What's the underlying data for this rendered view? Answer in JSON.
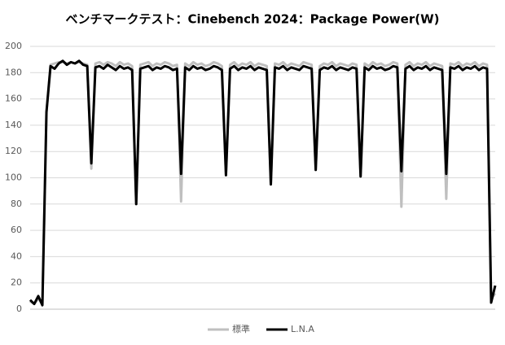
{
  "chart_data": {
    "type": "line",
    "title": "ベンチマークテスト：Cinebench 2024：Package Power(W)",
    "categories": [
      null,
      null,
      null,
      null,
      null,
      null,
      null,
      null,
      null,
      null,
      null,
      null,
      null,
      null,
      null,
      null,
      null,
      null,
      null,
      null,
      null,
      null,
      null,
      null,
      null,
      null,
      null,
      null,
      null,
      null,
      null,
      null,
      null,
      null,
      null,
      null,
      null,
      null,
      null,
      null,
      null,
      null,
      null,
      null,
      null,
      null,
      null,
      null,
      null,
      null,
      null,
      null,
      null,
      null,
      null,
      null,
      null,
      null,
      null,
      null,
      null,
      null,
      null,
      null,
      null,
      null,
      null,
      null,
      null,
      null,
      null,
      null,
      null,
      null,
      null,
      null,
      null,
      null,
      null,
      null,
      null,
      null,
      null,
      null,
      null,
      null,
      null,
      null,
      null,
      null,
      null,
      null,
      null,
      null,
      null,
      null,
      null,
      null,
      null,
      null,
      null,
      null,
      null,
      null,
      null,
      null,
      null,
      null,
      null,
      null,
      null,
      null,
      null,
      null,
      null
    ],
    "series": [
      {
        "name": "標準",
        "color": "#bfbfbf",
        "values": [
          6,
          4,
          8,
          4,
          150,
          186,
          187,
          188,
          188,
          187,
          188,
          187,
          188,
          187,
          186,
          107,
          187,
          188,
          186,
          188,
          187,
          185,
          188,
          186,
          187,
          185,
          80,
          186,
          187,
          188,
          185,
          187,
          186,
          188,
          187,
          185,
          186,
          82,
          187,
          185,
          188,
          186,
          187,
          185,
          186,
          188,
          187,
          185,
          102,
          186,
          188,
          185,
          187,
          186,
          188,
          185,
          187,
          186,
          185,
          95,
          187,
          186,
          188,
          185,
          187,
          186,
          185,
          188,
          187,
          186,
          106,
          185,
          187,
          186,
          188,
          185,
          187,
          186,
          185,
          187,
          186,
          101,
          187,
          185,
          188,
          186,
          187,
          185,
          186,
          188,
          187,
          78,
          186,
          188,
          185,
          187,
          186,
          188,
          185,
          187,
          186,
          185,
          84,
          187,
          186,
          188,
          185,
          187,
          186,
          188,
          185,
          187,
          186,
          8,
          12
        ]
      },
      {
        "name": "L.N.A",
        "color": "#000000",
        "values": [
          7,
          4,
          10,
          3,
          150,
          185,
          183,
          187,
          189,
          186,
          188,
          187,
          189,
          186,
          185,
          111,
          184,
          185,
          183,
          186,
          184,
          182,
          185,
          183,
          184,
          182,
          80,
          183,
          184,
          185,
          182,
          184,
          183,
          185,
          184,
          182,
          183,
          103,
          184,
          182,
          185,
          183,
          184,
          182,
          183,
          185,
          184,
          182,
          102,
          183,
          185,
          182,
          184,
          183,
          185,
          182,
          184,
          183,
          182,
          95,
          184,
          183,
          185,
          182,
          184,
          183,
          182,
          185,
          184,
          183,
          106,
          182,
          184,
          183,
          185,
          182,
          184,
          183,
          182,
          184,
          183,
          101,
          184,
          182,
          185,
          183,
          184,
          182,
          183,
          185,
          184,
          105,
          183,
          185,
          182,
          184,
          183,
          185,
          182,
          184,
          183,
          182,
          103,
          184,
          183,
          185,
          182,
          184,
          183,
          185,
          182,
          184,
          183,
          5,
          18
        ]
      }
    ],
    "ylim": [
      0,
      200
    ],
    "yticks": [
      0,
      20,
      40,
      60,
      80,
      100,
      120,
      140,
      160,
      180,
      200
    ],
    "grid": true,
    "legend": "bottom"
  }
}
